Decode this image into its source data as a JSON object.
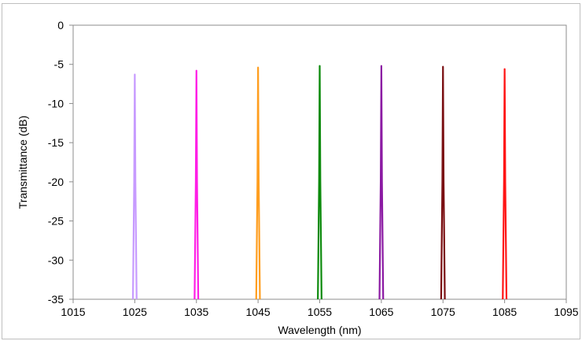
{
  "chart_data": {
    "type": "line",
    "title": "",
    "xlabel": "Wavelength (nm)",
    "ylabel": "Transmittance (dB)",
    "xlim": [
      1015,
      1095
    ],
    "ylim": [
      -35,
      0
    ],
    "x_ticks": [
      1015,
      1025,
      1035,
      1045,
      1055,
      1065,
      1075,
      1085,
      1095
    ],
    "y_ticks": [
      0,
      -5,
      -10,
      -15,
      -20,
      -25,
      -30,
      -35
    ],
    "grid": false,
    "legend": "none",
    "series": [
      {
        "color": "#c79bff",
        "center": 1025,
        "peak": -6.3,
        "x": [
          1024.7,
          1024.9,
          1025.0,
          1025.1,
          1025.3
        ],
        "y": [
          -35,
          -20,
          -6.3,
          -20,
          -35
        ]
      },
      {
        "color": "#ff1ee6",
        "center": 1035,
        "peak": -5.8,
        "x": [
          1034.7,
          1034.9,
          1035.0,
          1035.1,
          1035.3
        ],
        "y": [
          -35,
          -20,
          -5.8,
          -20,
          -35
        ]
      },
      {
        "color": "#ff9e1f",
        "center": 1045,
        "peak": -5.4,
        "x": [
          1044.7,
          1044.9,
          1045.0,
          1045.1,
          1045.3
        ],
        "y": [
          -35,
          -20,
          -5.4,
          -20,
          -35
        ]
      },
      {
        "color": "#0b8a0b",
        "center": 1055,
        "peak": -5.2,
        "x": [
          1054.7,
          1054.9,
          1055.0,
          1055.1,
          1055.3
        ],
        "y": [
          -35,
          -20,
          -5.2,
          -20,
          -35
        ]
      },
      {
        "color": "#8b1aa3",
        "center": 1065,
        "peak": -5.2,
        "x": [
          1064.7,
          1064.9,
          1065.0,
          1065.1,
          1065.3
        ],
        "y": [
          -35,
          -20,
          -5.2,
          -20,
          -35
        ]
      },
      {
        "color": "#7a0f12",
        "center": 1075,
        "peak": -5.3,
        "x": [
          1074.7,
          1074.9,
          1075.0,
          1075.1,
          1075.3
        ],
        "y": [
          -35,
          -20,
          -5.3,
          -20,
          -35
        ]
      },
      {
        "color": "#ff1414",
        "center": 1085,
        "peak": -5.6,
        "x": [
          1084.7,
          1084.9,
          1085.0,
          1085.1,
          1085.3
        ],
        "y": [
          -35,
          -20,
          -5.6,
          -20,
          -35
        ]
      }
    ]
  }
}
